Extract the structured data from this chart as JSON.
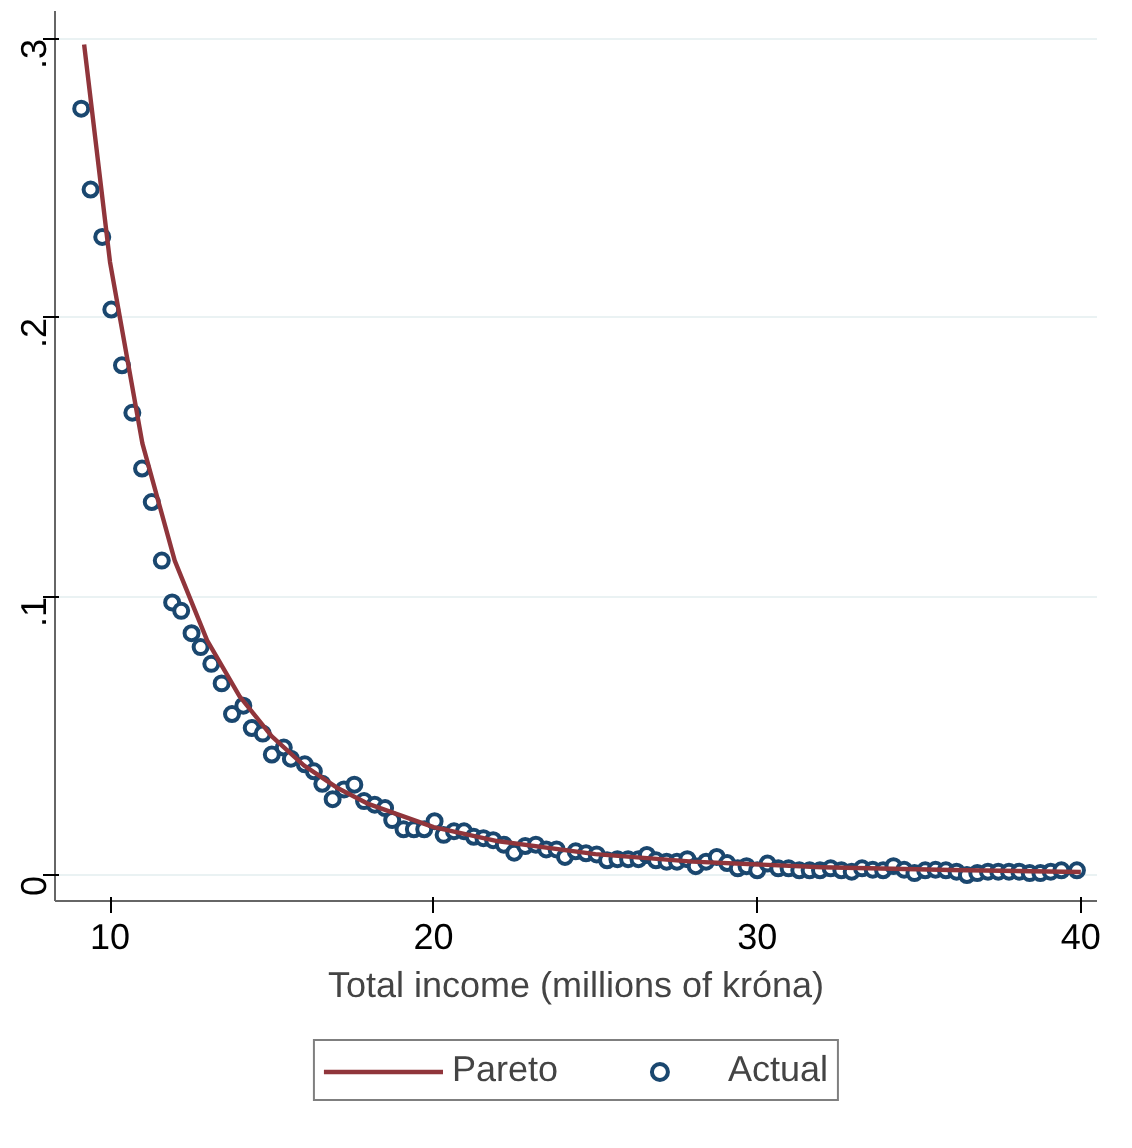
{
  "chart_data": {
    "type": "scatter",
    "xlabel": "Total income (millions of króna)",
    "xlim": [
      8.3,
      40.5
    ],
    "ylim": [
      -0.009,
      0.31
    ],
    "xticks": [
      10,
      20,
      30,
      40
    ],
    "yticks": [
      {
        "value": 0,
        "label": "0"
      },
      {
        "value": 0.1,
        "label": ".1"
      },
      {
        "value": 0.2,
        "label": ".2"
      },
      {
        "value": 0.3,
        "label": ".3"
      }
    ],
    "grid": "y",
    "legend": "bottom",
    "series": [
      {
        "name": "Pareto",
        "type": "line",
        "color": "#90353b",
        "line_style": "solid",
        "marker": "none",
        "x": [
          9.2,
          10,
          11,
          12,
          13,
          14,
          15,
          16,
          17,
          18,
          20,
          22,
          25,
          28,
          32,
          36,
          40
        ],
        "values": [
          0.298,
          0.22,
          0.155,
          0.113,
          0.0844,
          0.0644,
          0.05,
          0.0395,
          0.0317,
          0.0257,
          0.0175,
          0.0124,
          0.0078,
          0.0051,
          0.0031,
          0.0021,
          0.0014
        ]
      },
      {
        "name": "Actual",
        "color": "#1a476f",
        "marker": "circle",
        "x": [
          9.11,
          9.4,
          9.76,
          10.04,
          10.37,
          10.69,
          10.99,
          11.29,
          11.6,
          11.92,
          12.2,
          12.52,
          12.8,
          13.13,
          13.45,
          13.77,
          14.12,
          14.38,
          14.72,
          15.0,
          15.37,
          15.59,
          16.02,
          16.3,
          16.56,
          16.88,
          17.23,
          17.55,
          17.85,
          18.18,
          18.5,
          18.72,
          19.07,
          19.39,
          19.71,
          20.03,
          20.31,
          20.63,
          20.94,
          21.24,
          21.54,
          21.84,
          22.17,
          22.49,
          22.83,
          23.16,
          23.48,
          23.8,
          24.06,
          24.39,
          24.71,
          25.04,
          25.36,
          25.68,
          26.01,
          26.33,
          26.59,
          26.87,
          27.2,
          27.52,
          27.84,
          28.1,
          28.42,
          28.75,
          29.07,
          29.4,
          29.67,
          30.0,
          30.32,
          30.65,
          30.97,
          31.3,
          31.62,
          31.94,
          32.27,
          32.6,
          32.92,
          33.24,
          33.57,
          33.89,
          34.21,
          34.54,
          34.86,
          35.19,
          35.51,
          35.83,
          36.16,
          36.48,
          36.8,
          37.13,
          37.45,
          37.78,
          38.1,
          38.42,
          38.75,
          39.07,
          39.4,
          39.88
        ],
        "values": [
          0.275,
          0.246,
          0.229,
          0.203,
          0.183,
          0.166,
          0.146,
          0.134,
          0.113,
          0.098,
          0.095,
          0.087,
          0.082,
          0.076,
          0.069,
          0.058,
          0.061,
          0.053,
          0.051,
          0.0435,
          0.046,
          0.042,
          0.04,
          0.0375,
          0.033,
          0.0275,
          0.031,
          0.0327,
          0.0268,
          0.0255,
          0.0243,
          0.02,
          0.0167,
          0.0167,
          0.0167,
          0.0196,
          0.0147,
          0.016,
          0.016,
          0.014,
          0.0135,
          0.0128,
          0.0112,
          0.0083,
          0.0107,
          0.0112,
          0.0095,
          0.0095,
          0.0068,
          0.0088,
          0.0081,
          0.0077,
          0.0056,
          0.006,
          0.006,
          0.006,
          0.0075,
          0.0056,
          0.0051,
          0.0051,
          0.006,
          0.0035,
          0.0051,
          0.0068,
          0.0046,
          0.0027,
          0.0035,
          0.002,
          0.0044,
          0.0027,
          0.0027,
          0.002,
          0.002,
          0.002,
          0.0027,
          0.002,
          0.0015,
          0.0027,
          0.0022,
          0.002,
          0.0035,
          0.0022,
          0.001,
          0.002,
          0.0022,
          0.002,
          0.0015,
          0.0003,
          0.001,
          0.0015,
          0.0015,
          0.0015,
          0.0015,
          0.001,
          0.001,
          0.0015,
          0.002,
          0.002
        ]
      }
    ]
  }
}
